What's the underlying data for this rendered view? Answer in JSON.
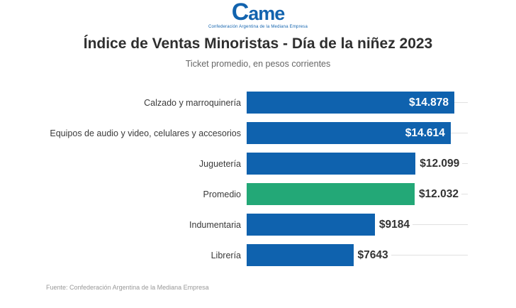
{
  "logo": {
    "text": "Came",
    "tagline": "Confederación Argentina de la Mediana Empresa",
    "color": "#1263ae"
  },
  "header": {
    "title": "Índice de Ventas Minoristas - Día de la niñez 2023",
    "subtitle": "Ticket promedio, en pesos corrientes"
  },
  "chart_data": {
    "type": "bar",
    "orientation": "horizontal",
    "title": "Índice de Ventas Minoristas - Día de la niñez 2023",
    "subtitle": "Ticket promedio, en pesos corrientes",
    "categories": [
      "Calzado y marroquinería",
      "Equipos de audio y video, celulares y accesorios",
      "Juguetería",
      "Promedio",
      "Indumentaria",
      "Librería"
    ],
    "values": [
      14878,
      14614,
      12099,
      12032,
      9184,
      7643
    ],
    "value_labels": [
      "$14.878",
      "$14.614",
      "$12.099",
      "$12.032",
      "$9184",
      "$7643"
    ],
    "label_position": [
      "inside",
      "inside",
      "outside",
      "outside",
      "outside",
      "outside"
    ],
    "bar_colors": [
      "#0f62ae",
      "#0f62ae",
      "#0f62ae",
      "#23a877",
      "#0f62ae",
      "#0f62ae"
    ],
    "xlim": [
      0,
      15843
    ],
    "grid": "per-row horizontal leader lines",
    "legend": "none",
    "unit": "pesos corrientes"
  },
  "colors": {
    "bar_blue": "#0f62ae",
    "bar_green": "#23a877",
    "gridline": "#e1e1e1",
    "title_text": "#2f2f2f",
    "background": "#ffffff"
  },
  "footer": {
    "source": "Fuente: Confederación Argentina de la Mediana Empresa"
  }
}
